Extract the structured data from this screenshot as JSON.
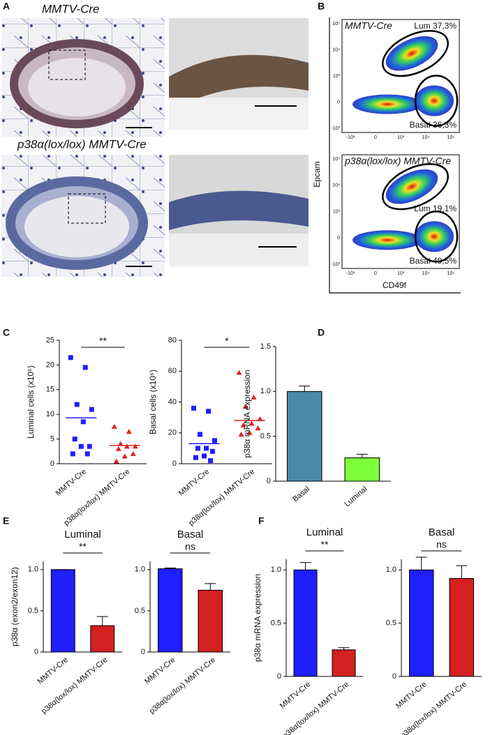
{
  "panel_labels": [
    "A",
    "B",
    "C",
    "D",
    "E",
    "F"
  ],
  "panel_a": {
    "title_top": "MMTV-Cre",
    "title_bottom": "p38α(lox/lox) MMTV-Cre"
  },
  "panel_b": {
    "plots": [
      {
        "title": "MMTV-Cre",
        "gates": [
          "Lum 37,3%",
          "Basal 36,3%"
        ]
      },
      {
        "title": "p38α(lox/lox) MMTV-Cre",
        "gates": [
          "Lum 19,1%",
          "Basal 49,5%"
        ]
      }
    ],
    "y_axis_label": "Epcam",
    "x_axis_label": "CD49f",
    "y_tick_labels": [
      "10⁵",
      "10⁴",
      "10³",
      "0",
      "-10³"
    ],
    "x_tick_labels": [
      "-10³",
      "0",
      "10³",
      "10⁴",
      "10⁵"
    ]
  },
  "chart_data": [
    {
      "type": "strip",
      "ylabel": "Luminal cells (x10⁵)",
      "categories": [
        "MMTV-Cre",
        "p38α(lox/lox) MMTV-Cre"
      ],
      "points": [
        [
          21.5,
          19.5,
          12,
          11,
          8.5,
          5,
          3.5,
          3.5,
          2,
          2
        ],
        [
          7.5,
          6.5,
          4,
          3.5,
          3.5,
          3,
          2,
          1.5,
          0.5
        ]
      ],
      "means": [
        9.3,
        3.7
      ],
      "colors": [
        "#1f1fff",
        "#e02020"
      ],
      "markers": [
        "square",
        "triangle"
      ],
      "ylim": [
        0,
        25
      ],
      "yticks": [
        0,
        5,
        10,
        15,
        20,
        25
      ],
      "significance": "**"
    },
    {
      "type": "strip",
      "ylabel": "Basal cells (x10⁵)",
      "categories": [
        "MMTV-Cre",
        "p38α(lox/lox) MMTV-Cre"
      ],
      "points": [
        [
          36,
          34,
          19,
          15,
          10,
          10,
          8,
          5,
          4,
          2
        ],
        [
          59,
          43,
          37,
          29,
          26,
          25,
          23,
          20,
          19
        ]
      ],
      "means": [
        13,
        28
      ],
      "colors": [
        "#1f1fff",
        "#e02020"
      ],
      "markers": [
        "square",
        "triangle"
      ],
      "ylim": [
        0,
        80
      ],
      "yticks": [
        0,
        20,
        40,
        60,
        80
      ],
      "significance": "*"
    },
    {
      "type": "bar",
      "ylabel": "p38α mRNA expression",
      "categories": [
        "Basal",
        "Luminal"
      ],
      "values": [
        1.0,
        0.26
      ],
      "errors": [
        0.06,
        0.04
      ],
      "colors": [
        "#4a8aa8",
        "#7dff3a"
      ],
      "ylim": [
        0,
        1.5
      ],
      "yticks": [
        0,
        0.5,
        {
          "value": 1,
          "label": "1.0"
        },
        1.5
      ]
    },
    {
      "type": "bar",
      "title": "Luminal",
      "ylabel": "p38α  (exon2/exon12)",
      "categories": [
        "MMTV-Cre",
        "p38α(lox/lox) MMTV-Cre"
      ],
      "values": [
        1.0,
        0.32
      ],
      "errors": [
        0,
        0.11
      ],
      "colors": [
        "#1f1fff",
        "#d42020"
      ],
      "ylim": [
        0,
        1.1
      ],
      "yticks": [
        0,
        0.5,
        {
          "value": 1,
          "label": "1.0"
        }
      ],
      "significance": "**"
    },
    {
      "type": "bar",
      "title": "Basal",
      "categories": [
        "MMTV-Cre",
        "p38α(lox/lox) MMTV-Cre"
      ],
      "values": [
        1.01,
        0.75
      ],
      "errors": [
        0.01,
        0.08
      ],
      "colors": [
        "#1f1fff",
        "#d42020"
      ],
      "ylim": [
        0,
        1.1
      ],
      "yticks": [
        0,
        0.5,
        {
          "value": 1,
          "label": "1.0"
        }
      ],
      "significance": "ns"
    },
    {
      "type": "bar",
      "title": "Luminal",
      "ylabel": "p38α mRNA expression",
      "categories": [
        "MMTV-Cre",
        "p38α(lox/lox) MMTV-Cre"
      ],
      "values": [
        1.0,
        0.25
      ],
      "errors": [
        0.07,
        0.02
      ],
      "colors": [
        "#1f1fff",
        "#d42020"
      ],
      "ylim": [
        0,
        1.1
      ],
      "yticks": [
        0,
        0.5,
        {
          "value": 1,
          "label": "1.0"
        }
      ],
      "significance": "**"
    },
    {
      "type": "bar",
      "title": "Basal",
      "categories": [
        "MMTV-Cre",
        "p38α(lox/lox) MMTV-Cre"
      ],
      "values": [
        1.0,
        0.92
      ],
      "errors": [
        0.12,
        0.12
      ],
      "colors": [
        "#1f1fff",
        "#d42020"
      ],
      "ylim": [
        0,
        1.1
      ],
      "yticks": [
        0,
        0.5,
        {
          "value": 1,
          "label": "1.0"
        }
      ],
      "significance": "ns"
    }
  ]
}
